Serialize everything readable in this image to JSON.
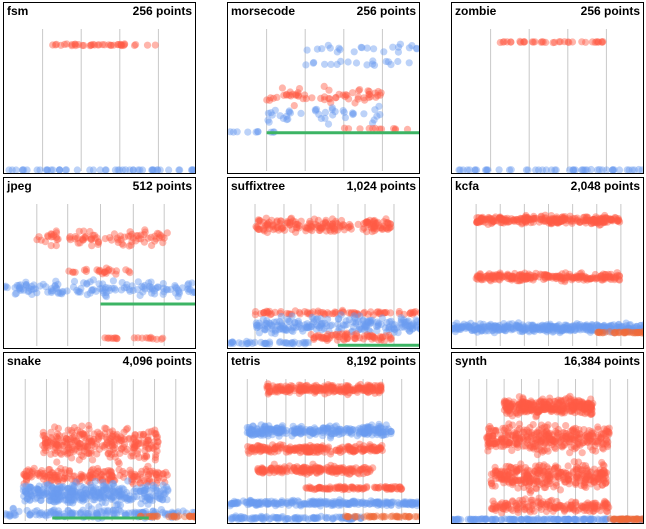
{
  "colors": {
    "red": "#ff5a45",
    "blue": "#6b9bf0",
    "green": "#3cb464",
    "orange": "#ef6a3a",
    "grid": "#c8c8c8"
  },
  "chart_data": [
    {
      "type": "scatter",
      "title": "fsm",
      "count_label": "256 points",
      "points": 256,
      "dividers": [
        0.2,
        0.4,
        0.6,
        0.8
      ],
      "bands": [
        {
          "color": "red",
          "x": [
            0.2,
            0.8
          ],
          "y": 0.84,
          "spread": 0.01,
          "n": 40,
          "jitter": 0.3
        },
        {
          "color": "blue",
          "x": [
            0.0,
            1.0
          ],
          "y": 0.005,
          "spread": 0.004,
          "n": 50,
          "jitter": 0.2
        }
      ]
    },
    {
      "type": "scatter",
      "title": "morsecode",
      "count_label": "256 points",
      "points": 256,
      "dividers": [
        0.2,
        0.4,
        0.6,
        0.8
      ],
      "bands": [
        {
          "color": "blue",
          "x": [
            0.4,
            1.0
          ],
          "y": 0.82,
          "spread": 0.04,
          "n": 22,
          "jitter": 0.3
        },
        {
          "color": "blue",
          "x": [
            0.4,
            1.0
          ],
          "y": 0.72,
          "spread": 0.03,
          "n": 18,
          "jitter": 0.3
        },
        {
          "color": "red",
          "x": [
            0.2,
            0.8
          ],
          "y": 0.5,
          "spread": 0.08,
          "n": 60,
          "jitter": 0.3
        },
        {
          "color": "blue",
          "x": [
            0.2,
            0.8
          ],
          "y": 0.38,
          "spread": 0.08,
          "n": 40,
          "jitter": 0.3
        },
        {
          "color": "blue",
          "x": [
            0.0,
            0.25
          ],
          "y": 0.26,
          "spread": 0.005,
          "n": 10,
          "jitter": 0.2
        },
        {
          "color": "red",
          "x": [
            0.6,
            1.0
          ],
          "y": 0.28,
          "spread": 0.01,
          "n": 12,
          "jitter": 0.2
        }
      ],
      "lines": [
        {
          "color": "green",
          "x": [
            0.2,
            1.0
          ],
          "y": 0.255
        }
      ]
    },
    {
      "type": "scatter",
      "title": "zombie",
      "count_label": "256 points",
      "points": 256,
      "dividers": [
        0.2,
        0.4,
        0.6,
        0.8
      ],
      "bands": [
        {
          "color": "red",
          "x": [
            0.2,
            0.8
          ],
          "y": 0.86,
          "spread": 0.005,
          "n": 36,
          "jitter": 0.2
        },
        {
          "color": "blue",
          "x": [
            0.0,
            1.0
          ],
          "y": 0.005,
          "spread": 0.008,
          "n": 50,
          "jitter": 0.2
        }
      ]
    },
    {
      "type": "scatter",
      "title": "jpeg",
      "count_label": "512 points",
      "points": 512,
      "dividers": [
        0.17,
        0.33,
        0.5,
        0.67,
        0.83
      ],
      "bands": [
        {
          "color": "red",
          "x": [
            0.15,
            0.85
          ],
          "y": 0.72,
          "spread": 0.07,
          "n": 90,
          "jitter": 0.3
        },
        {
          "color": "red",
          "x": [
            0.33,
            0.67
          ],
          "y": 0.5,
          "spread": 0.03,
          "n": 25,
          "jitter": 0.3
        },
        {
          "color": "blue",
          "x": [
            0.0,
            1.0
          ],
          "y": 0.38,
          "spread": 0.07,
          "n": 140,
          "jitter": 0.3
        },
        {
          "color": "red",
          "x": [
            0.5,
            0.83
          ],
          "y": 0.05,
          "spread": 0.01,
          "n": 20,
          "jitter": 0.2
        }
      ],
      "lines": [
        {
          "color": "green",
          "x": [
            0.5,
            1.0
          ],
          "y": 0.28
        }
      ]
    },
    {
      "type": "scatter",
      "title": "suffixtree",
      "count_label": "1,024 points",
      "points": 1024,
      "dividers": [
        0.14,
        0.29,
        0.43,
        0.57,
        0.71,
        0.86
      ],
      "bands": [
        {
          "color": "red",
          "x": [
            0.14,
            0.86
          ],
          "y": 0.8,
          "spread": 0.07,
          "n": 180,
          "jitter": 0.3
        },
        {
          "color": "red",
          "x": [
            0.14,
            1.0
          ],
          "y": 0.22,
          "spread": 0.02,
          "n": 80,
          "jitter": 0.3
        },
        {
          "color": "blue",
          "x": [
            0.14,
            1.0
          ],
          "y": 0.14,
          "spread": 0.08,
          "n": 200,
          "jitter": 0.3
        },
        {
          "color": "red",
          "x": [
            0.43,
            0.86
          ],
          "y": 0.06,
          "spread": 0.04,
          "n": 70,
          "jitter": 0.3
        },
        {
          "color": "blue",
          "x": [
            0.0,
            0.43
          ],
          "y": 0.02,
          "spread": 0.015,
          "n": 40,
          "jitter": 0.2
        }
      ],
      "lines": [
        {
          "color": "green",
          "x": [
            0.57,
            1.0
          ],
          "y": 0.005
        }
      ]
    },
    {
      "type": "scatter",
      "title": "kcfa",
      "count_label": "2,048 points",
      "points": 2048,
      "dividers": [
        0.125,
        0.25,
        0.375,
        0.5,
        0.625,
        0.75,
        0.875
      ],
      "bands": [
        {
          "color": "red",
          "x": [
            0.125,
            0.875
          ],
          "y": 0.84,
          "spread": 0.04,
          "n": 260,
          "jitter": 0.3
        },
        {
          "color": "red",
          "x": [
            0.125,
            0.875
          ],
          "y": 0.46,
          "spread": 0.035,
          "n": 220,
          "jitter": 0.3
        },
        {
          "color": "blue",
          "x": [
            0.0,
            1.0
          ],
          "y": 0.12,
          "spread": 0.04,
          "n": 360,
          "jitter": 0.3
        },
        {
          "color": "orange",
          "x": [
            0.75,
            1.0
          ],
          "y": 0.09,
          "spread": 0.008,
          "n": 40,
          "jitter": 0.2
        }
      ]
    },
    {
      "type": "scatter",
      "title": "snake",
      "count_label": "4,096 points",
      "points": 4096,
      "dividers": [
        0.11,
        0.22,
        0.33,
        0.44,
        0.56,
        0.67,
        0.78,
        0.89
      ],
      "bands": [
        {
          "color": "red",
          "x": [
            0.2,
            0.8
          ],
          "y": 0.52,
          "spread": 0.16,
          "n": 260,
          "jitter": 0.3
        },
        {
          "color": "red",
          "x": [
            0.1,
            0.85
          ],
          "y": 0.3,
          "spread": 0.08,
          "n": 180,
          "jitter": 0.3
        },
        {
          "color": "blue",
          "x": [
            0.1,
            0.85
          ],
          "y": 0.18,
          "spread": 0.1,
          "n": 320,
          "jitter": 0.3
        },
        {
          "color": "blue",
          "x": [
            0.0,
            1.0
          ],
          "y": 0.05,
          "spread": 0.04,
          "n": 150,
          "jitter": 0.2
        },
        {
          "color": "orange",
          "x": [
            0.7,
            1.0
          ],
          "y": 0.03,
          "spread": 0.008,
          "n": 30,
          "jitter": 0.2
        }
      ],
      "lines": [
        {
          "color": "green",
          "x": [
            0.25,
            0.75
          ],
          "y": 0.02
        }
      ]
    },
    {
      "type": "scatter",
      "title": "tetris",
      "count_label": "8,192 points",
      "points": 8192,
      "dividers": [
        0.1,
        0.2,
        0.3,
        0.4,
        0.5,
        0.6,
        0.7,
        0.8,
        0.9
      ],
      "bands": [
        {
          "color": "red",
          "x": [
            0.2,
            0.8
          ],
          "y": 0.88,
          "spread": 0.04,
          "n": 220,
          "jitter": 0.3
        },
        {
          "color": "blue",
          "x": [
            0.1,
            0.85
          ],
          "y": 0.6,
          "spread": 0.05,
          "n": 260,
          "jitter": 0.3
        },
        {
          "color": "red",
          "x": [
            0.1,
            0.8
          ],
          "y": 0.48,
          "spread": 0.04,
          "n": 200,
          "jitter": 0.3
        },
        {
          "color": "red",
          "x": [
            0.15,
            0.75
          ],
          "y": 0.34,
          "spread": 0.04,
          "n": 180,
          "jitter": 0.3
        },
        {
          "color": "red",
          "x": [
            0.4,
            0.9
          ],
          "y": 0.22,
          "spread": 0.015,
          "n": 90,
          "jitter": 0.3
        },
        {
          "color": "blue",
          "x": [
            0.0,
            1.0
          ],
          "y": 0.12,
          "spread": 0.025,
          "n": 240,
          "jitter": 0.3
        },
        {
          "color": "blue",
          "x": [
            0.0,
            0.7
          ],
          "y": 0.02,
          "spread": 0.015,
          "n": 100,
          "jitter": 0.2
        },
        {
          "color": "orange",
          "x": [
            0.6,
            1.0
          ],
          "y": 0.03,
          "spread": 0.006,
          "n": 40,
          "jitter": 0.2
        }
      ]
    },
    {
      "type": "scatter",
      "title": "synth",
      "count_label": "16,384 points",
      "points": 16384,
      "dividers": [
        0.09,
        0.18,
        0.27,
        0.36,
        0.45,
        0.55,
        0.64,
        0.73,
        0.82,
        0.91
      ],
      "bands": [
        {
          "color": "red",
          "x": [
            0.27,
            0.73
          ],
          "y": 0.76,
          "spread": 0.08,
          "n": 300,
          "jitter": 0.3
        },
        {
          "color": "red",
          "x": [
            0.18,
            0.82
          ],
          "y": 0.55,
          "spread": 0.12,
          "n": 320,
          "jitter": 0.3
        },
        {
          "color": "red",
          "x": [
            0.2,
            0.8
          ],
          "y": 0.3,
          "spread": 0.12,
          "n": 300,
          "jitter": 0.3
        },
        {
          "color": "red",
          "x": [
            0.2,
            0.82
          ],
          "y": 0.1,
          "spread": 0.06,
          "n": 160,
          "jitter": 0.3
        },
        {
          "color": "blue",
          "x": [
            0.0,
            1.0
          ],
          "y": 0.01,
          "spread": 0.008,
          "n": 150,
          "jitter": 0.2
        },
        {
          "color": "orange",
          "x": [
            0.82,
            1.0
          ],
          "y": 0.012,
          "spread": 0.005,
          "n": 40,
          "jitter": 0.2
        }
      ]
    }
  ]
}
